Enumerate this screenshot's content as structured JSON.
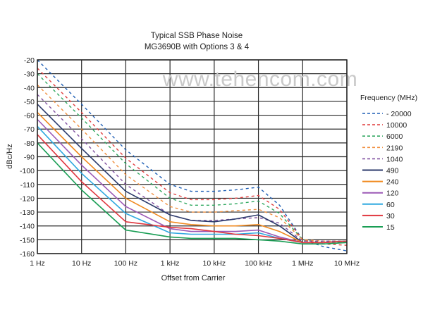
{
  "chart_data": {
    "type": "line",
    "title": "Typical SSB Phase Noise",
    "subtitle": "MG3690B with Options 3 & 4",
    "xlabel": "Offset from Carrier",
    "ylabel": "dBc/Hz",
    "watermark": "www.tehencom.com",
    "x_scale": "log",
    "xlim": [
      "1 Hz",
      "10 MHz"
    ],
    "ylim": [
      -160,
      -20
    ],
    "grid": true,
    "x_ticks": [
      "1 Hz",
      "10 Hz",
      "100 Hz",
      "1 kHz",
      "10 kHz",
      "100 kHz",
      "1 MHz",
      "10 MHz"
    ],
    "y_ticks": [
      -20,
      -30,
      -40,
      -50,
      -60,
      -70,
      -80,
      -90,
      -100,
      -110,
      -120,
      -130,
      -140,
      -150,
      -160
    ],
    "legend": {
      "title": "Frequency (MHz)",
      "placement": "right",
      "entries": [
        "- 20000",
        "10000",
        "6000",
        "2190",
        "1040",
        "490",
        "240",
        "120",
        "60",
        "30",
        "15"
      ]
    },
    "series": [
      {
        "name": "20000",
        "color": "#1f5fb5",
        "style": "dashed",
        "x_hz": [
          1,
          10,
          100,
          1000,
          3000,
          10000,
          30000,
          100000,
          300000,
          1000000,
          3000000,
          10000000
        ],
        "y": [
          -20,
          -52,
          -85,
          -110,
          -115,
          -115,
          -114,
          -112,
          -125,
          -150,
          -155,
          -158
        ]
      },
      {
        "name": "10000",
        "color": "#e04040",
        "style": "dashed",
        "x_hz": [
          1,
          10,
          100,
          1000,
          3000,
          10000,
          30000,
          100000,
          300000,
          1000000,
          3000000,
          10000000
        ],
        "y": [
          -26,
          -58,
          -91,
          -116,
          -121,
          -121,
          -120,
          -118,
          -128,
          -150,
          -153,
          -154
        ]
      },
      {
        "name": "6000",
        "color": "#30a860",
        "style": "dashed",
        "x_hz": [
          1,
          10,
          100,
          1000,
          3000,
          10000,
          30000,
          100000,
          300000,
          1000000,
          3000000,
          10000000
        ],
        "y": [
          -30,
          -62,
          -95,
          -120,
          -125,
          -125,
          -124,
          -122,
          -131,
          -150,
          -152,
          -152
        ]
      },
      {
        "name": "2190",
        "color": "#f09040",
        "style": "dashed",
        "x_hz": [
          1,
          10,
          100,
          1000,
          3000,
          10000,
          30000,
          100000,
          300000,
          1000000,
          3000000,
          10000000
        ],
        "y": [
          -38,
          -70,
          -103,
          -126,
          -130,
          -130,
          -129,
          -128,
          -134,
          -150,
          -151,
          -151
        ]
      },
      {
        "name": "1040",
        "color": "#8050a0",
        "style": "dashed",
        "x_hz": [
          1,
          10,
          100,
          1000,
          3000,
          10000,
          30000,
          100000,
          300000,
          1000000,
          3000000,
          10000000
        ],
        "y": [
          -45,
          -77,
          -110,
          -132,
          -136,
          -136,
          -135,
          -134,
          -138,
          -151,
          -151,
          -151
        ]
      },
      {
        "name": "490",
        "color": "#2b3a6b",
        "style": "solid",
        "x_hz": [
          1,
          10,
          100,
          1000,
          3000,
          10000,
          30000,
          100000,
          300000,
          1000000,
          3000000,
          10000000
        ],
        "y": [
          -52,
          -84,
          -115,
          -132,
          -136,
          -137,
          -135,
          -132,
          -140,
          -152,
          -152,
          -151
        ]
      },
      {
        "name": "240",
        "color": "#f08a20",
        "style": "solid",
        "x_hz": [
          1,
          10,
          100,
          1000,
          3000,
          10000,
          30000,
          100000,
          300000,
          1000000,
          3000000,
          10000000
        ],
        "y": [
          -58,
          -90,
          -120,
          -137,
          -139,
          -140,
          -140,
          -139,
          -144,
          -152,
          -152,
          -151
        ]
      },
      {
        "name": "120",
        "color": "#9b59b6",
        "style": "solid",
        "x_hz": [
          1,
          10,
          100,
          1000,
          3000,
          10000,
          30000,
          100000,
          300000,
          1000000,
          3000000,
          10000000
        ],
        "y": [
          -63,
          -96,
          -126,
          -142,
          -144,
          -144,
          -144,
          -143,
          -148,
          -152,
          -152,
          -151
        ]
      },
      {
        "name": "60",
        "color": "#2fa8e0",
        "style": "solid",
        "x_hz": [
          1,
          10,
          100,
          1000,
          3000,
          10000,
          30000,
          100000,
          300000,
          1000000,
          3000000,
          10000000
        ],
        "y": [
          -68,
          -102,
          -131,
          -145,
          -146,
          -146,
          -146,
          -145,
          -149,
          -152,
          -152,
          -151
        ]
      },
      {
        "name": "30",
        "color": "#e0363e",
        "style": "solid",
        "x_hz": [
          1,
          10,
          100,
          1000,
          3000,
          10000,
          30000,
          100000,
          300000,
          1000000,
          3000000,
          10000000
        ],
        "y": [
          -74,
          -108,
          -137,
          -141,
          -142,
          -144,
          -146,
          -147,
          -149,
          -152,
          -152,
          -151
        ]
      },
      {
        "name": "15",
        "color": "#1a9e55",
        "style": "solid",
        "x_hz": [
          1,
          10,
          100,
          1000,
          3000,
          10000,
          30000,
          100000,
          300000,
          1000000,
          3000000,
          10000000
        ],
        "y": [
          -80,
          -114,
          -143,
          -148,
          -149,
          -149,
          -149,
          -150,
          -151,
          -153,
          -153,
          -152
        ]
      }
    ]
  }
}
